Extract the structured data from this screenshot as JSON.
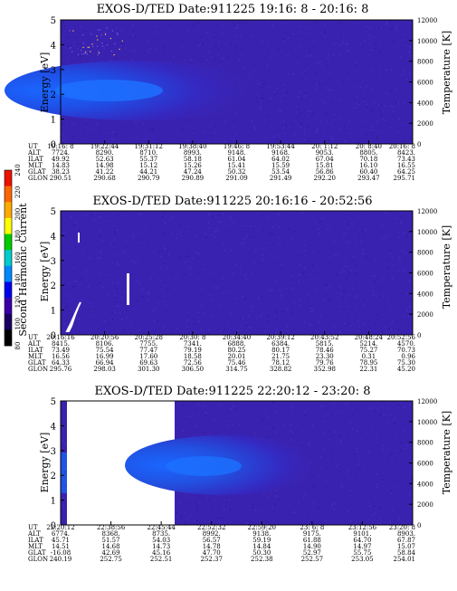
{
  "colorbar": {
    "label": "Second Harmonic Current",
    "ticks": [
      "240",
      "220",
      "200",
      "180",
      "160",
      "140",
      "120",
      "100",
      "80"
    ],
    "colors": [
      "#ee1100",
      "#ff6600",
      "#ffaa00",
      "#ffff00",
      "#00cc00",
      "#00cccc",
      "#0088ff",
      "#0000ee",
      "#3a00a8",
      "#1a0060",
      "#000000"
    ]
  },
  "chart_data": [
    {
      "type": "heatmap",
      "title": "EXOS-D/TED   Date:911225  19:16: 8 - 20:16: 8",
      "ylabel": "Energy [eV]",
      "y2label": "Temperature [K]",
      "ylim": [
        0,
        5
      ],
      "yticks": [
        "0",
        "1",
        "2",
        "3",
        "4",
        "5"
      ],
      "y2lim": [
        0,
        12000
      ],
      "y2ticks": [
        "0",
        "2000",
        "4000",
        "6000",
        "8000",
        "10000",
        "12000"
      ],
      "row_labels": [
        "UT",
        "ALT",
        "ILAT",
        "MLT",
        "GLAT",
        "GLON"
      ],
      "columns": [
        [
          "19:16: 8",
          "7724.",
          "49.92",
          "14.83",
          "38.23",
          "290.51"
        ],
        [
          "19:22:44",
          "8290.",
          "52.63",
          "14.98",
          "41.22",
          "290.68"
        ],
        [
          "19:31:12",
          "8710.",
          "55.37",
          "15.12",
          "44.21",
          "290.79"
        ],
        [
          "19:38:40",
          "8993.",
          "58.18",
          "15.26",
          "47.24",
          "290.89"
        ],
        [
          "19:46: 8",
          "9148.",
          "61.04",
          "15.41",
          "50.32",
          "291.09"
        ],
        [
          "19:53:44",
          "9168.",
          "64.02",
          "15.59",
          "53.54",
          "291.49"
        ],
        [
          "20: 1:12",
          "9053.",
          "67.04",
          "15.81",
          "56.86",
          "292.20"
        ],
        [
          "20: 8:40",
          "8805.",
          "70.18",
          "16.10",
          "60.40",
          "293.47"
        ],
        [
          "20:16: 8",
          "8423.",
          "73.43",
          "16.55",
          "64.25",
          "295.71"
        ]
      ]
    },
    {
      "type": "heatmap",
      "title": "EXOS-D/TED   Date:911225  20:16:16 - 20:52:56",
      "ylabel": "Energy [eV]",
      "y2label": "Temperature [K]",
      "ylim": [
        0,
        5
      ],
      "yticks": [
        "0",
        "1",
        "2",
        "3",
        "4",
        "5"
      ],
      "y2lim": [
        0,
        12000
      ],
      "y2ticks": [
        "0",
        "2000",
        "4000",
        "6000",
        "8000",
        "10000",
        "12000"
      ],
      "row_labels": [
        "UT",
        "ALT",
        "ILAT",
        "MLT",
        "GLAT",
        "GLON"
      ],
      "columns": [
        [
          "20:16:16",
          "8415.",
          "73.49",
          "16.56",
          "64.33",
          "295.76"
        ],
        [
          "20:20:56",
          "8106.",
          "75.54",
          "16.99",
          "66.94",
          "298.03"
        ],
        [
          "20:25:28",
          "7755.",
          "77.47",
          "17.60",
          "69.63",
          "301.30"
        ],
        [
          "20:30: 8",
          "7341.",
          "79.19",
          "18.58",
          "72.56",
          "306.50"
        ],
        [
          "20:34:40",
          "6888.",
          "80.25",
          "20.01",
          "75.46",
          "314.75"
        ],
        [
          "20:39:12",
          "6384.",
          "80.17",
          "21.75",
          "78.12",
          "328.82"
        ],
        [
          "20:43:52",
          "5815.",
          "78.46",
          "23.30",
          "79.76",
          "352.98"
        ],
        [
          "20:48:24",
          "5214.",
          "75.27",
          "0.31",
          "78.95",
          "22.31"
        ],
        [
          "20:52:56",
          "4570.",
          "70.73",
          "0.96",
          "75.30",
          "45.20"
        ]
      ]
    },
    {
      "type": "heatmap",
      "title": "EXOS-D/TED   Date:911225  22:20:12 - 23:20: 8",
      "ylabel": "Energy [eV]",
      "y2label": "Temperature [K]",
      "ylim": [
        0,
        5
      ],
      "yticks": [
        "0",
        "1",
        "2",
        "3",
        "4",
        "5"
      ],
      "y2lim": [
        0,
        12000
      ],
      "y2ticks": [
        "0",
        "2000",
        "4000",
        "6000",
        "8000",
        "10000",
        "12000"
      ],
      "row_labels": [
        "UT",
        "ALT",
        "ILAT",
        "MLT",
        "GLAT",
        "GLON"
      ],
      "columns": [
        [
          "22:20:12",
          "6774.",
          "45.71",
          "14.51",
          "-16.08",
          "240.19"
        ],
        [
          "22:38:56",
          "8368.",
          "51.57",
          "14.68",
          "42.69",
          "252.75"
        ],
        [
          "22:45:44",
          "8735.",
          "54.03",
          "14.73",
          "45.16",
          "252.51"
        ],
        [
          "22:52:32",
          "8992.",
          "56.57",
          "14.78",
          "47.70",
          "252.37"
        ],
        [
          "22:59:20",
          "9138.",
          "59.19",
          "14.84",
          "50.30",
          "252.38"
        ],
        [
          "23: 6: 8",
          "9175.",
          "61.88",
          "14.90",
          "52.97",
          "252.57"
        ],
        [
          "23:12:56",
          "9101.",
          "64.70",
          "14.97",
          "55.75",
          "253.05"
        ],
        [
          "23:20: 8",
          "8903.",
          "67.87",
          "15.07",
          "58.84",
          "254.01"
        ]
      ]
    }
  ]
}
